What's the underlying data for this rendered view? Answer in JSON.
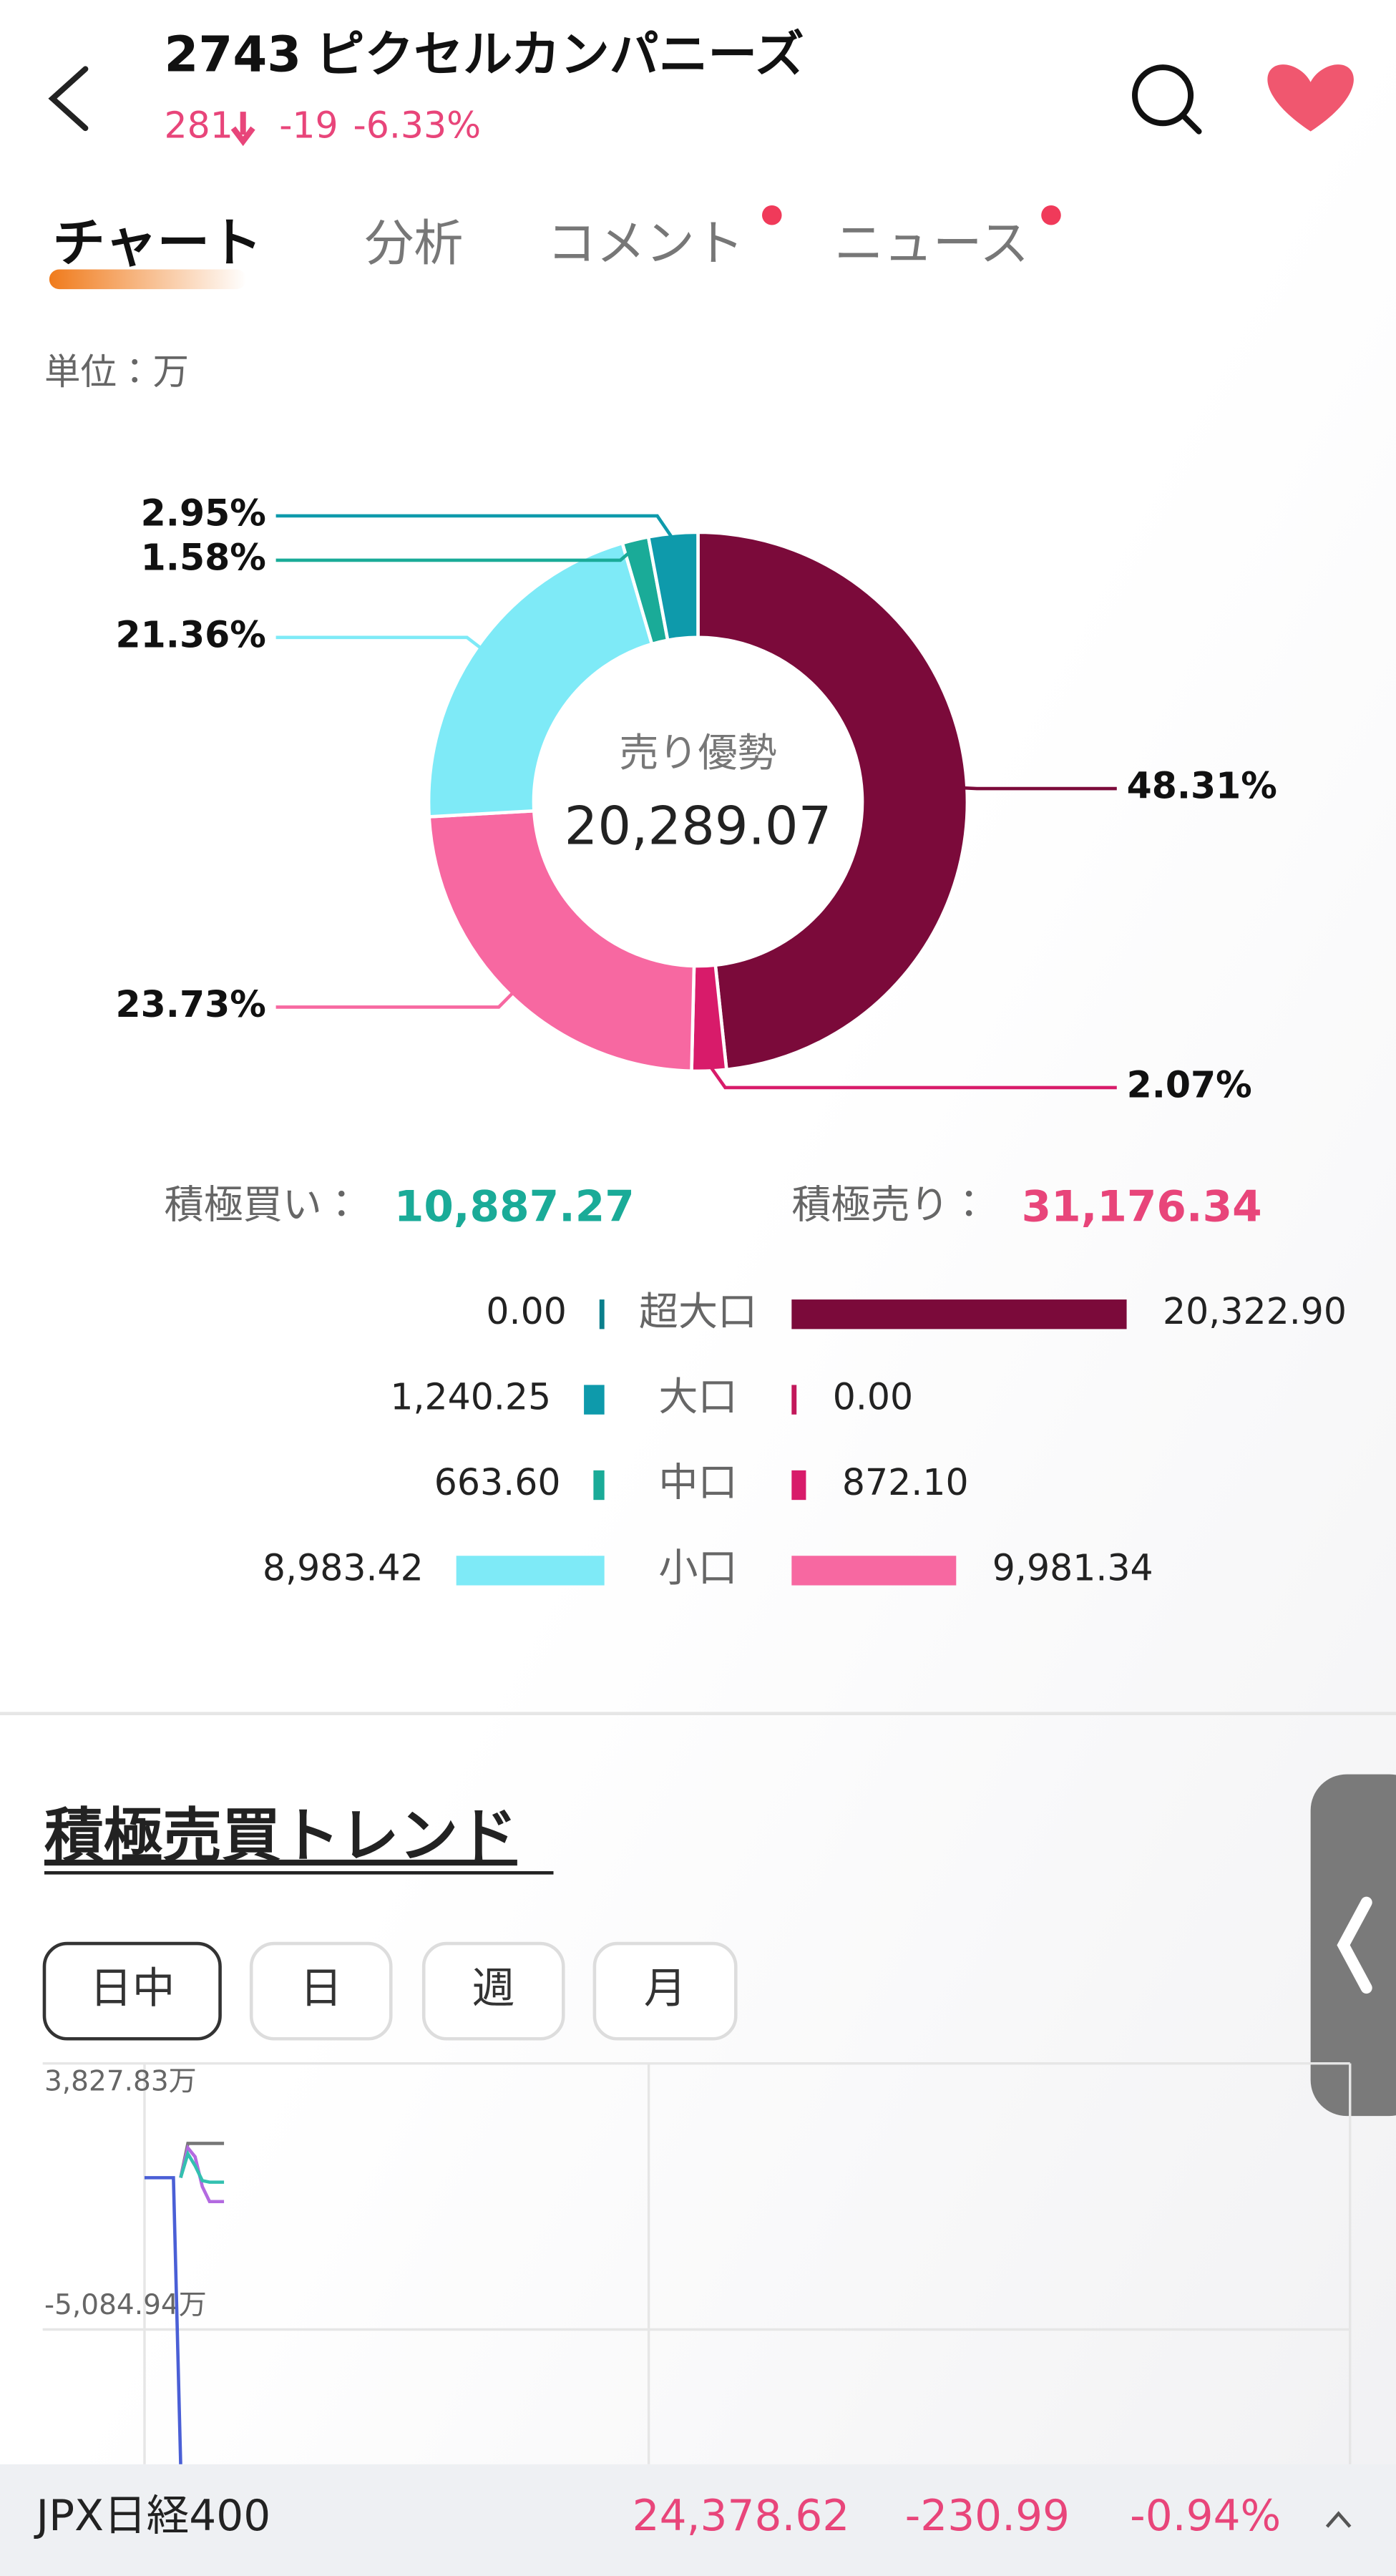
{
  "header": {
    "code": "2743",
    "name": "ピクセルカンパニーズ",
    "price": "281",
    "change": "-19",
    "change_pct": "-6.33%"
  },
  "tabs": [
    "チャート",
    "分析",
    "コメント",
    "ニュース"
  ],
  "unit": "単位：万",
  "summary": {
    "buy_label": "積極買い：",
    "buy_value": "10,887.27",
    "sell_label": "積極売り：",
    "sell_value": "31,176.34"
  },
  "chart_data": [
    {
      "type": "pie",
      "donut": true,
      "center_label": "売り優勢",
      "center_value": "20,289.07",
      "values": [
        48.31,
        2.07,
        23.73,
        21.36,
        1.58,
        2.95
      ],
      "value_labels": [
        "48.31%",
        "2.07%",
        "23.73%",
        "21.36%",
        "1.58%",
        "2.95%"
      ],
      "colors": [
        "#7b0a3a",
        "#d81b6a",
        "#f768a1",
        "#7eeaf7",
        "#1aab98",
        "#0e9aab"
      ]
    },
    {
      "type": "butterfly",
      "categories": [
        "超大口",
        "大口",
        "中口",
        "小口"
      ],
      "series": [
        {
          "colors": [
            "#0a7f8c",
            "#0e9aab",
            "#1aab98",
            "#7eeaf7"
          ],
          "values": [
            0,
            1240.25,
            663.6,
            8983.42
          ],
          "value_labels": [
            "0.00",
            "1,240.25",
            "663.60",
            "8,983.42"
          ]
        },
        {
          "colors": [
            "#7b0a3a",
            "#c2185b",
            "#d81b6a",
            "#f768a1"
          ],
          "values": [
            20322.9,
            0,
            872.1,
            9981.34
          ],
          "value_labels": [
            "20,322.90",
            "0.00",
            "872.10",
            "9,981.34"
          ]
        }
      ]
    },
    {
      "type": "line",
      "title": "積極売買トレンド",
      "periods": [
        "日中",
        "日",
        "週",
        "月"
      ],
      "ylim": [
        -9600,
        3827.83
      ],
      "yticks": [
        {
          "value": 3827.83,
          "label": "3,827.83万"
        },
        {
          "value": -5084.94,
          "label": "-5,084.94万"
        }
      ],
      "series": [
        {
          "color": "#4a5fd6",
          "values": [
            0,
            0,
            0,
            0,
            0,
            -9600,
            null,
            null,
            null,
            null,
            null,
            null
          ]
        },
        {
          "color": "#777777",
          "values": [
            null,
            null,
            null,
            null,
            null,
            0,
            1150,
            1150,
            1150,
            1150,
            1150,
            1150
          ]
        },
        {
          "color": "#b36ae0",
          "values": [
            null,
            null,
            null,
            null,
            null,
            0,
            1000,
            700,
            -300,
            -800,
            -800,
            -800
          ]
        },
        {
          "color": "#33c0b0",
          "values": [
            null,
            null,
            null,
            null,
            null,
            0,
            800,
            400,
            -100,
            -150,
            -150,
            -150
          ]
        }
      ]
    }
  ],
  "ticker": {
    "name": "JPX日経400",
    "value": "24,378.62",
    "change": "-230.99",
    "change_pct": "-0.94%"
  }
}
